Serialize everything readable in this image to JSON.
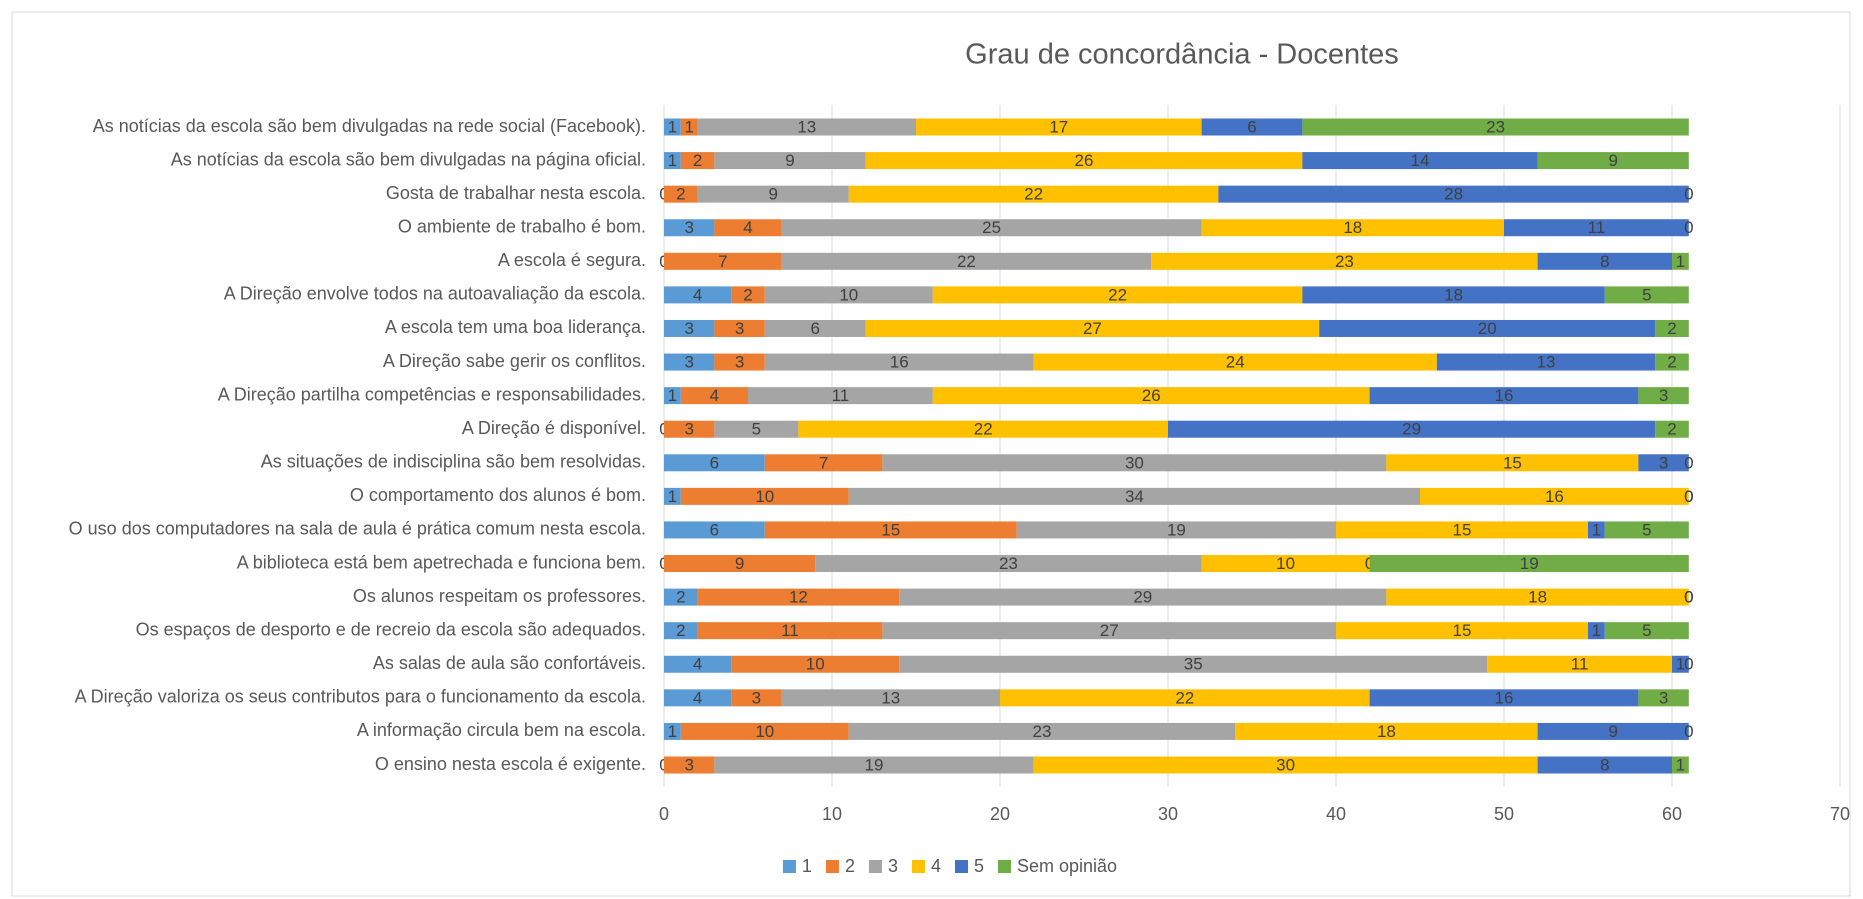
{
  "chart_data": {
    "type": "stacked-bar-horizontal",
    "title": "Grau de concordância - Docentes",
    "categories": [
      "As notícias da escola são bem divulgadas na rede social (Facebook).",
      "As notícias da escola são bem divulgadas na página oficial.",
      "Gosta de trabalhar nesta escola.",
      "O ambiente de trabalho é bom.",
      "A escola é segura.",
      "A Direção envolve todos na autoavaliação da escola.",
      "A escola tem uma boa liderança.",
      "A Direção sabe gerir os conflitos.",
      "A Direção partilha competências e responsabilidades.",
      "A Direção é disponível.",
      "As situações de indisciplina são bem resolvidas.",
      "O comportamento dos alunos é bom.",
      "O uso dos computadores na sala de aula é prática comum nesta escola.",
      "A biblioteca está bem apetrechada e funciona bem.",
      "Os alunos respeitam os professores.",
      "Os espaços de desporto e de recreio da escola são adequados.",
      "As salas de aula são confortáveis.",
      "A Direção valoriza os seus contributos para o funcionamento da escola.",
      "A informação circula bem na escola.",
      "O ensino nesta escola é exigente."
    ],
    "series": [
      {
        "name": "1",
        "color": "#5b9bd5",
        "values": [
          1,
          1,
          0,
          3,
          0,
          4,
          3,
          3,
          1,
          0,
          6,
          1,
          6,
          0,
          2,
          2,
          4,
          4,
          1,
          0
        ]
      },
      {
        "name": "2",
        "color": "#ed7d31",
        "values": [
          1,
          2,
          2,
          4,
          7,
          2,
          3,
          3,
          4,
          3,
          7,
          10,
          15,
          9,
          12,
          11,
          10,
          3,
          10,
          3
        ]
      },
      {
        "name": "3",
        "color": "#a5a5a5",
        "values": [
          13,
          9,
          9,
          25,
          22,
          10,
          6,
          16,
          11,
          5,
          30,
          34,
          19,
          23,
          29,
          27,
          35,
          13,
          23,
          19
        ]
      },
      {
        "name": "4",
        "color": "#ffc000",
        "values": [
          17,
          26,
          22,
          18,
          23,
          22,
          27,
          24,
          26,
          22,
          15,
          16,
          15,
          10,
          18,
          15,
          11,
          22,
          18,
          30
        ]
      },
      {
        "name": "5",
        "color": "#4472c4",
        "values": [
          6,
          14,
          28,
          11,
          8,
          18,
          20,
          13,
          16,
          29,
          3,
          0,
          1,
          0,
          0,
          1,
          1,
          16,
          9,
          8
        ]
      },
      {
        "name": "Sem opinião",
        "color": "#70ad47",
        "values": [
          23,
          9,
          0,
          0,
          1,
          5,
          2,
          2,
          3,
          2,
          0,
          0,
          5,
          19,
          0,
          5,
          0,
          3,
          0,
          1
        ]
      }
    ],
    "xlim": [
      0,
      70
    ],
    "xticks": [
      0,
      10,
      20,
      30,
      40,
      50,
      60,
      70
    ],
    "grid": true,
    "legend": "bottom"
  }
}
